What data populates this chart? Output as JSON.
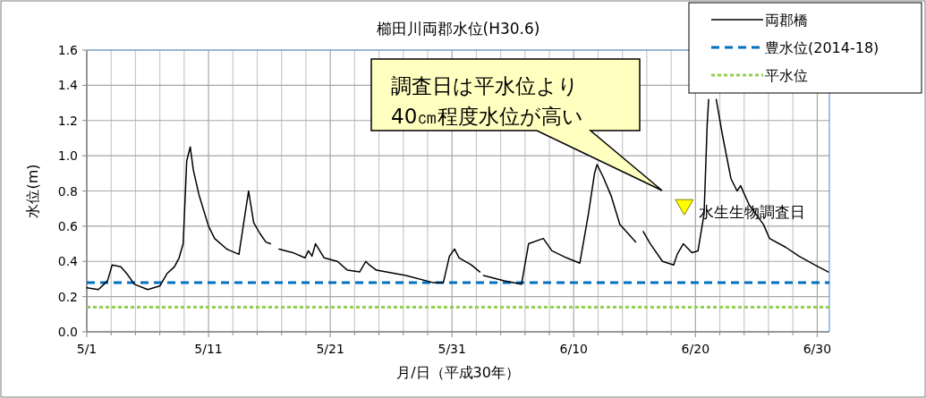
{
  "chart_data": {
    "type": "line",
    "title": "櫛田川両郡水位(H30.6)",
    "xlabel": "月/日（平成30年）",
    "ylabel": "水位(m)",
    "xlim": [
      "--05-01",
      "--07-01"
    ],
    "xticks": [
      {
        "value": "--05-01",
        "label": "5/1"
      },
      {
        "value": "--05-03",
        "label": null
      },
      {
        "value": "--05-05",
        "label": null
      },
      {
        "value": "--05-07",
        "label": null
      },
      {
        "value": "--05-09",
        "label": null
      },
      {
        "value": "--05-11",
        "label": "5/11"
      },
      {
        "value": "--05-13",
        "label": null
      },
      {
        "value": "--05-15",
        "label": null
      },
      {
        "value": "--05-17",
        "label": null
      },
      {
        "value": "--05-19",
        "label": null
      },
      {
        "value": "--05-21",
        "label": "5/21"
      },
      {
        "value": "--05-23",
        "label": null
      },
      {
        "value": "--05-25",
        "label": null
      },
      {
        "value": "--05-27",
        "label": null
      },
      {
        "value": "--05-29",
        "label": null
      },
      {
        "value": "--05-31",
        "label": "5/31"
      },
      {
        "value": "--06-02",
        "label": null
      },
      {
        "value": "--06-04",
        "label": null
      },
      {
        "value": "--06-06",
        "label": null
      },
      {
        "value": "--06-08",
        "label": null
      },
      {
        "value": "--06-10",
        "label": "6/10"
      },
      {
        "value": "--06-12",
        "label": null
      },
      {
        "value": "--06-14",
        "label": null
      },
      {
        "value": "--06-16",
        "label": null
      },
      {
        "value": "--06-18",
        "label": null
      },
      {
        "value": "--06-20",
        "label": "6/20"
      },
      {
        "value": "--06-22",
        "label": null
      },
      {
        "value": "--06-24",
        "label": null
      },
      {
        "value": "--06-26",
        "label": null
      },
      {
        "value": "--06-28",
        "label": null
      },
      {
        "value": "--06-30",
        "label": "6/30"
      }
    ],
    "ylim": [
      0,
      1.6
    ],
    "yticks": [
      {
        "value": 0,
        "label": "0.0"
      },
      {
        "value": 0.2,
        "label": "0.2"
      },
      {
        "value": 0.4,
        "label": "0.4"
      },
      {
        "value": 0.6,
        "label": "0.6"
      },
      {
        "value": 0.8,
        "label": "0.8"
      },
      {
        "value": 1.0,
        "label": "1.0"
      },
      {
        "value": 1.2,
        "label": "1.2"
      },
      {
        "value": 1.4,
        "label": "1.4"
      },
      {
        "value": 1.6,
        "label": "1.6"
      }
    ],
    "grid": true,
    "legend": "top right",
    "series": [
      {
        "name": "両郡橋",
        "type": "line",
        "color": "#000000",
        "line_style": "solid",
        "marker": "none",
        "x": [
          "--05-01T00:00",
          "--05-01T23:00",
          "--05-02T17:00",
          "--05-03T02:00",
          "--05-03T19:00",
          "--05-04T07:00",
          "--05-04T22:00",
          "--05-06T00:00",
          "--05-07T00:00",
          "--05-07T14:00",
          "--05-08T05:00",
          "--05-08T14:00",
          "--05-08T22:00",
          "--05-09T05:00",
          "--05-09T12:00",
          "--05-09T18:00",
          "--05-10T05:00",
          "--05-11T00:00",
          "--05-11T12:00",
          "--05-12T12:00",
          "--05-13T12:00",
          "--05-13T22:00",
          "--05-14T07:00",
          "--05-14T17:00",
          "--05-15T05:00",
          "--05-15T17:00",
          "--05-16T02:00"
        ],
        "values": [
          0.25,
          0.24,
          0.29,
          0.38,
          0.37,
          0.33,
          0.27,
          0.24,
          0.26,
          0.33,
          0.37,
          0.42,
          0.5,
          0.97,
          1.05,
          0.92,
          0.78,
          0.6,
          0.53,
          0.47,
          0.44,
          0.63,
          0.8,
          0.62,
          0.56,
          0.51,
          0.5
        ]
      },
      {
        "type": "line",
        "color": "#000000",
        "line_style": "solid",
        "marker": "none",
        "x": [
          "--05-16T19:00",
          "--05-17T22:00",
          "--05-18T22:00",
          "--05-19T05:00",
          "--05-19T12:00",
          "--05-19T19:00",
          "--05-20T12:00",
          "--05-21T14:00",
          "--05-22T10:00",
          "--05-23T10:00",
          "--05-23T22:00",
          "--05-24T05:00",
          "--05-24T19:00",
          "--05-27T05:00",
          "--05-29T10:00",
          "--05-30T07:00",
          "--05-30T19:00",
          "--05-31T05:00",
          "--05-31T14:00",
          "--06-01T14:00",
          "--06-02T07:00"
        ],
        "values": [
          0.47,
          0.45,
          0.42,
          0.46,
          0.43,
          0.5,
          0.42,
          0.4,
          0.35,
          0.34,
          0.4,
          0.38,
          0.35,
          0.32,
          0.28,
          0.28,
          0.43,
          0.47,
          0.42,
          0.38,
          0.34
        ]
      },
      {
        "type": "line",
        "color": "#000000",
        "line_style": "solid",
        "marker": "none",
        "x": [
          "--06-02T14:00",
          "--06-04T07:00",
          "--06-05T17:00",
          "--06-06T07:00",
          "--06-07T12:00",
          "--06-08T05:00",
          "--06-09T10:00",
          "--06-10T12:00",
          "--06-11T05:00",
          "--06-11T17:00",
          "--06-11T22:00",
          "--06-12T10:00",
          "--06-13T02:00",
          "--06-13T19:00",
          "--06-15T02:00"
        ],
        "values": [
          0.32,
          0.29,
          0.27,
          0.5,
          0.53,
          0.46,
          0.42,
          0.39,
          0.67,
          0.9,
          0.95,
          0.88,
          0.77,
          0.61,
          0.51
        ]
      },
      {
        "type": "line",
        "color": "#000000",
        "line_style": "solid",
        "marker": "none",
        "x": [
          "--06-15T17:00",
          "--06-16T07:00",
          "--06-17T07:00",
          "--06-18T05:00",
          "--06-18T12:00",
          "--06-19T00:00",
          "--06-19T17:00",
          "--06-20T05:00",
          "--06-20T17:00",
          "--06-20T23:00",
          "--06-21T02:00"
        ],
        "values": [
          0.57,
          0.5,
          0.4,
          0.38,
          0.44,
          0.5,
          0.45,
          0.46,
          0.67,
          1.17,
          1.32
        ]
      },
      {
        "type": "line",
        "color": "#000000",
        "line_style": "solid",
        "marker": "none",
        "x": [
          "--06-21T17:00",
          "--06-22T05:00",
          "--06-22T22:00",
          "--06-23T10:00",
          "--06-23T17:00",
          "--06-24T10:00",
          "--06-25T14:00",
          "--06-26T02:00",
          "--06-27T10:00",
          "--06-28T12:00",
          "--06-29T19:00",
          "--06-30T22:00"
        ],
        "values": [
          1.32,
          1.12,
          0.87,
          0.8,
          0.83,
          0.72,
          0.61,
          0.53,
          0.48,
          0.43,
          0.38,
          0.34
        ]
      },
      {
        "name": "水生生物調査日",
        "type": "scatter",
        "color": "#ffff00",
        "marker": "triangle",
        "x": [
          "--06-19T02:00"
        ],
        "values": [
          0.71
        ]
      }
    ],
    "ref_lines": [
      {
        "axis": "y",
        "value": 0.28,
        "label": "豊水位(2014-18)",
        "color": "#0070c0",
        "line_style": "dashed"
      },
      {
        "axis": "y",
        "value": 0.14,
        "label": "平水位",
        "color": "#92d050",
        "line_style": "dotted"
      }
    ],
    "annotations": [
      "調査日は平水位より\n40㎝程度水位が高い"
    ]
  }
}
